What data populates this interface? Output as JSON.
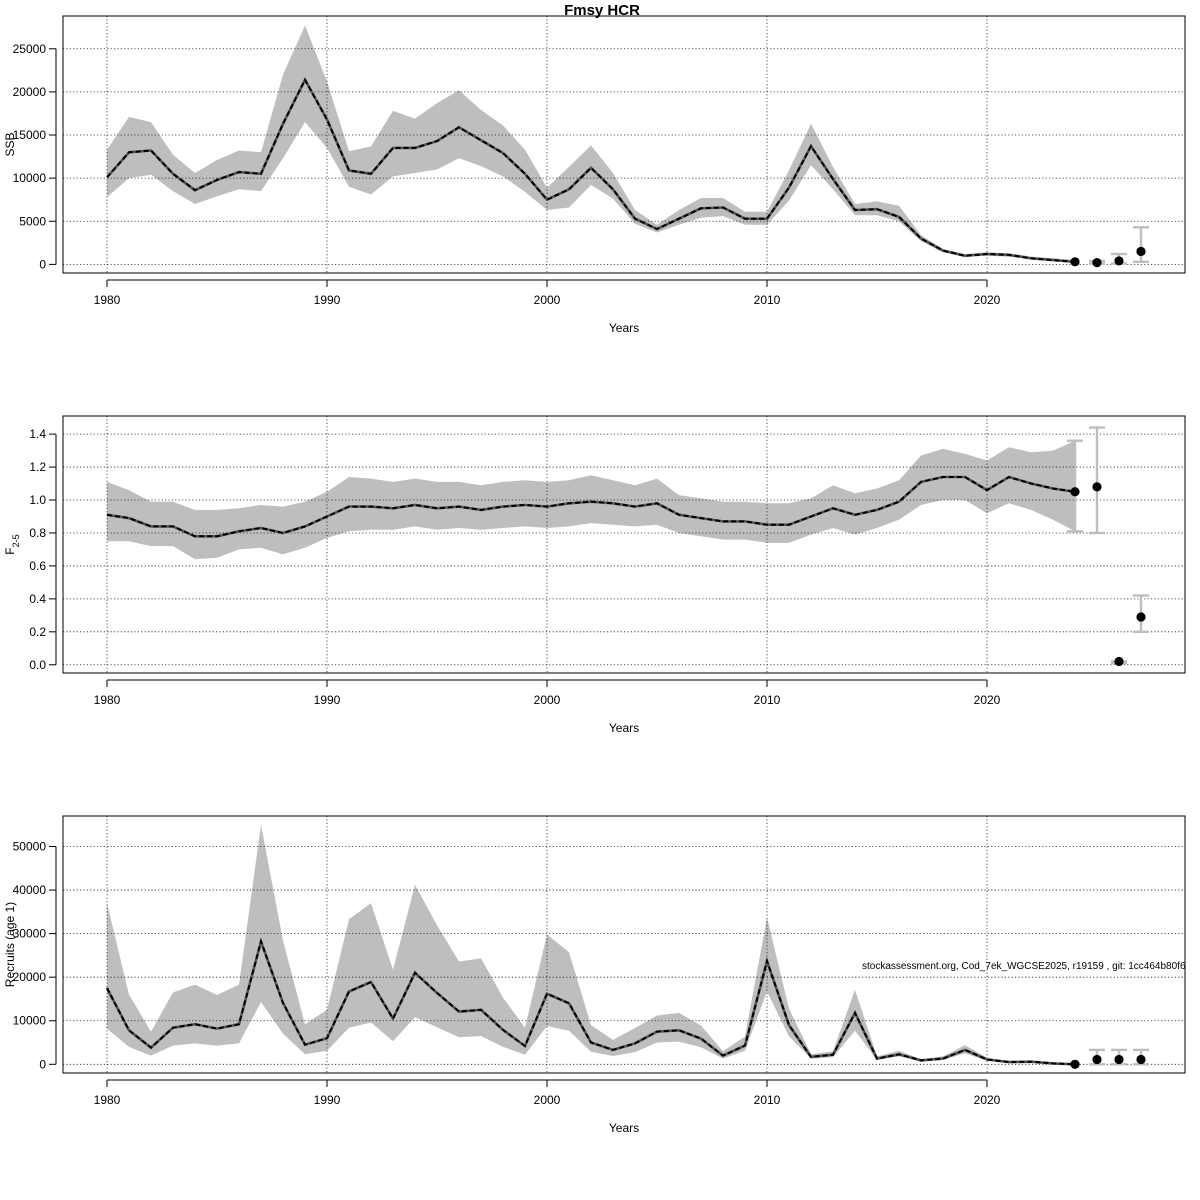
{
  "title": "Fmsy HCR",
  "watermark": "stockassessment.org, Cod_7ek_WGCSE2025, r19159 , git: 1cc464b80f6",
  "chart_data": [
    {
      "id": "ssb",
      "type": "line",
      "ylabel": "SSB",
      "ylabel_sub": "",
      "xlabel": "Years",
      "xlim": [
        1978,
        2029
      ],
      "ylim": [
        -1000,
        28800
      ],
      "x_ticks": [
        1980,
        1990,
        2000,
        2010,
        2020
      ],
      "y_ticks": [
        0,
        5000,
        10000,
        15000,
        20000,
        25000
      ],
      "grid": true,
      "colors": {
        "band": "#bebebe",
        "line": "#000000",
        "error_bar": "#bebebe",
        "points": "#000000"
      },
      "series": [
        {
          "x": [
            1980,
            1981,
            1982,
            1983,
            1984,
            1985,
            1986,
            1987,
            1988,
            1989,
            1990,
            1991,
            1992,
            1993,
            1994,
            1995,
            1996,
            1997,
            1998,
            1999,
            2000,
            2001,
            2002,
            2003,
            2004,
            2005,
            2006,
            2007,
            2008,
            2009,
            2010,
            2011,
            2012,
            2013,
            2014,
            2015,
            2016,
            2017,
            2018,
            2019,
            2020,
            2021,
            2022,
            2023,
            2024
          ],
          "values": [
            10100,
            13000,
            13200,
            10500,
            8600,
            9800,
            10700,
            10500,
            16300,
            21400,
            16800,
            10900,
            10500,
            13500,
            13500,
            14300,
            15900,
            14400,
            12900,
            10500,
            7500,
            8700,
            11200,
            8700,
            5300,
            4100,
            5300,
            6500,
            6600,
            5300,
            5300,
            8900,
            13700,
            9900,
            6300,
            6400,
            5500,
            3000,
            1600,
            1000,
            1200,
            1100,
            700,
            500,
            300
          ],
          "low": [
            7800,
            10000,
            10400,
            8500,
            7000,
            7900,
            8700,
            8500,
            12300,
            16500,
            13500,
            9000,
            8100,
            10200,
            10600,
            11000,
            12300,
            11400,
            10200,
            8400,
            6300,
            6600,
            9200,
            7600,
            4700,
            3700,
            4600,
            5400,
            5600,
            4600,
            4600,
            7400,
            11500,
            8700,
            5700,
            5700,
            5000,
            2700,
            1400,
            900,
            1000,
            900,
            600,
            400,
            200
          ],
          "high": [
            13300,
            17100,
            16500,
            12700,
            10600,
            12100,
            13200,
            13000,
            22000,
            27700,
            21200,
            13100,
            13700,
            17800,
            16900,
            18700,
            20200,
            17900,
            16100,
            13300,
            8900,
            11300,
            13800,
            10600,
            6300,
            4600,
            6300,
            7700,
            7700,
            6100,
            6100,
            10900,
            16300,
            11300,
            7000,
            7300,
            6800,
            3400,
            1800,
            1200,
            1400,
            1300,
            900,
            700,
            500
          ]
        }
      ],
      "forecast": [
        {
          "year": 2024,
          "median": 300,
          "low": 300,
          "high": 300
        },
        {
          "year": 2025,
          "median": 200,
          "low": 100,
          "high": 400
        },
        {
          "year": 2026,
          "median": 400,
          "low": 100,
          "high": 1200
        },
        {
          "year": 2027,
          "median": 1500,
          "low": 300,
          "high": 4300
        }
      ]
    },
    {
      "id": "fbar",
      "type": "line",
      "ylabel": "F",
      "ylabel_sub": "2-5",
      "xlabel": "Years",
      "xlim": [
        1978,
        2029
      ],
      "ylim": [
        -0.05,
        1.51
      ],
      "x_ticks": [
        1980,
        1990,
        2000,
        2010,
        2020
      ],
      "y_ticks": [
        0.0,
        0.2,
        0.4,
        0.6,
        0.8,
        1.0,
        1.2,
        1.4
      ],
      "y_tick_labels": [
        "0.0",
        "0.2",
        "0.4",
        "0.6",
        "0.8",
        "1.0",
        "1.2",
        "1.4"
      ],
      "grid": true,
      "colors": {
        "band": "#bebebe",
        "line": "#000000",
        "error_bar": "#bebebe",
        "points": "#000000"
      },
      "series": [
        {
          "x": [
            1980,
            1981,
            1982,
            1983,
            1984,
            1985,
            1986,
            1987,
            1988,
            1989,
            1990,
            1991,
            1992,
            1993,
            1994,
            1995,
            1996,
            1997,
            1998,
            1999,
            2000,
            2001,
            2002,
            2003,
            2004,
            2005,
            2006,
            2007,
            2008,
            2009,
            2010,
            2011,
            2012,
            2013,
            2014,
            2015,
            2016,
            2017,
            2018,
            2019,
            2020,
            2021,
            2022,
            2023,
            2024
          ],
          "values": [
            0.91,
            0.89,
            0.84,
            0.84,
            0.78,
            0.78,
            0.81,
            0.83,
            0.8,
            0.84,
            0.9,
            0.96,
            0.96,
            0.95,
            0.97,
            0.95,
            0.96,
            0.94,
            0.96,
            0.97,
            0.96,
            0.98,
            0.99,
            0.98,
            0.96,
            0.98,
            0.91,
            0.89,
            0.87,
            0.87,
            0.85,
            0.85,
            0.9,
            0.95,
            0.91,
            0.94,
            0.99,
            1.11,
            1.14,
            1.14,
            1.06,
            1.14,
            1.1,
            1.07,
            1.05
          ],
          "low": [
            0.75,
            0.75,
            0.72,
            0.72,
            0.64,
            0.65,
            0.7,
            0.71,
            0.67,
            0.71,
            0.77,
            0.81,
            0.82,
            0.82,
            0.84,
            0.82,
            0.83,
            0.82,
            0.83,
            0.84,
            0.83,
            0.84,
            0.86,
            0.85,
            0.84,
            0.85,
            0.8,
            0.78,
            0.76,
            0.76,
            0.74,
            0.74,
            0.79,
            0.83,
            0.79,
            0.83,
            0.88,
            0.97,
            1.0,
            1.0,
            0.92,
            0.98,
            0.94,
            0.88,
            0.81
          ],
          "high": [
            1.11,
            1.06,
            0.99,
            0.99,
            0.94,
            0.94,
            0.95,
            0.97,
            0.96,
            0.99,
            1.05,
            1.14,
            1.13,
            1.11,
            1.13,
            1.11,
            1.11,
            1.09,
            1.11,
            1.12,
            1.11,
            1.12,
            1.15,
            1.12,
            1.09,
            1.13,
            1.03,
            1.01,
            0.99,
            0.99,
            0.98,
            0.98,
            1.01,
            1.09,
            1.04,
            1.07,
            1.12,
            1.27,
            1.31,
            1.28,
            1.24,
            1.32,
            1.29,
            1.3,
            1.36
          ]
        }
      ],
      "forecast": [
        {
          "year": 2024,
          "median": 1.05,
          "low": 0.81,
          "high": 1.36
        },
        {
          "year": 2025,
          "median": 1.08,
          "low": 0.8,
          "high": 1.44
        },
        {
          "year": 2026,
          "median": 0.02,
          "low": 0.01,
          "high": 0.02
        },
        {
          "year": 2027,
          "median": 0.29,
          "low": 0.2,
          "high": 0.42
        }
      ]
    },
    {
      "id": "recruits",
      "type": "line",
      "ylabel": "Recruits (age 1)",
      "ylabel_sub": "",
      "xlabel": "Years",
      "xlim": [
        1978,
        2029
      ],
      "ylim": [
        -2000,
        57000
      ],
      "x_ticks": [
        1980,
        1990,
        2000,
        2010,
        2020
      ],
      "y_ticks": [
        0,
        10000,
        20000,
        30000,
        40000,
        50000
      ],
      "grid": true,
      "colors": {
        "band": "#bebebe",
        "line": "#000000",
        "error_bar": "#bebebe",
        "points": "#000000"
      },
      "series": [
        {
          "x": [
            1980,
            1981,
            1982,
            1983,
            1984,
            1985,
            1986,
            1987,
            1988,
            1989,
            1990,
            1991,
            1992,
            1993,
            1994,
            1995,
            1996,
            1997,
            1998,
            1999,
            2000,
            2001,
            2002,
            2003,
            2004,
            2005,
            2006,
            2007,
            2008,
            2009,
            2010,
            2011,
            2012,
            2013,
            2014,
            2015,
            2016,
            2017,
            2018,
            2019,
            2020,
            2021,
            2022,
            2023,
            2024
          ],
          "values": [
            17500,
            7800,
            3800,
            8400,
            9200,
            8200,
            9200,
            28200,
            14100,
            4500,
            6000,
            16700,
            18900,
            10500,
            21000,
            16400,
            12100,
            12500,
            7900,
            4200,
            16200,
            14000,
            5000,
            3300,
            4800,
            7500,
            7800,
            5900,
            2000,
            4300,
            23700,
            9000,
            1700,
            2200,
            11800,
            1300,
            2300,
            900,
            1300,
            3300,
            1100,
            500,
            600,
            200,
            0
          ],
          "low": [
            8200,
            4000,
            2000,
            4300,
            4800,
            4300,
            4800,
            14300,
            7000,
            2300,
            3100,
            8400,
            9600,
            5300,
            10800,
            8500,
            6200,
            6500,
            4000,
            2200,
            8800,
            7700,
            2900,
            1900,
            2800,
            5000,
            5200,
            3900,
            1300,
            3100,
            16700,
            6400,
            1300,
            1600,
            7700,
            1000,
            1800,
            700,
            1000,
            2500,
            800,
            400,
            400,
            150,
            0
          ],
          "high": [
            37000,
            16000,
            7500,
            16500,
            18300,
            15900,
            18300,
            55000,
            28400,
            9200,
            12500,
            33300,
            37000,
            21700,
            41200,
            31900,
            23600,
            24300,
            15300,
            8400,
            29800,
            25700,
            9000,
            5600,
            8300,
            11200,
            11800,
            8900,
            3000,
            6400,
            33700,
            12800,
            2300,
            3000,
            17100,
            1800,
            3100,
            1200,
            1800,
            4400,
            1500,
            700,
            800,
            300,
            0
          ]
        }
      ],
      "forecast": [
        {
          "year": 2024,
          "median": 0,
          "low": 0,
          "high": 0
        },
        {
          "year": 2025,
          "median": 1100,
          "low": 0,
          "high": 3300
        },
        {
          "year": 2026,
          "median": 1100,
          "low": 0,
          "high": 3300
        },
        {
          "year": 2027,
          "median": 1100,
          "low": 0,
          "high": 3300
        }
      ]
    }
  ]
}
